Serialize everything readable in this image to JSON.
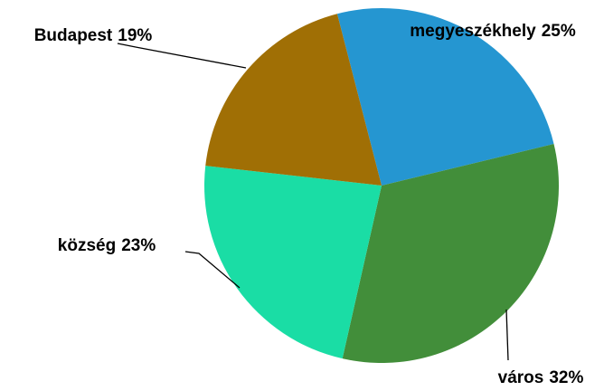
{
  "chart_data": {
    "type": "pie",
    "categories": [
      "megyeszékhely",
      "város",
      "község",
      "Budapest"
    ],
    "values": [
      25,
      32,
      23,
      19
    ],
    "value_labels": [
      "25%",
      "32%",
      "23%",
      "19%"
    ],
    "colors": [
      "#2596d1",
      "#428e3a",
      "#1adda5",
      "#a06f05"
    ]
  }
}
